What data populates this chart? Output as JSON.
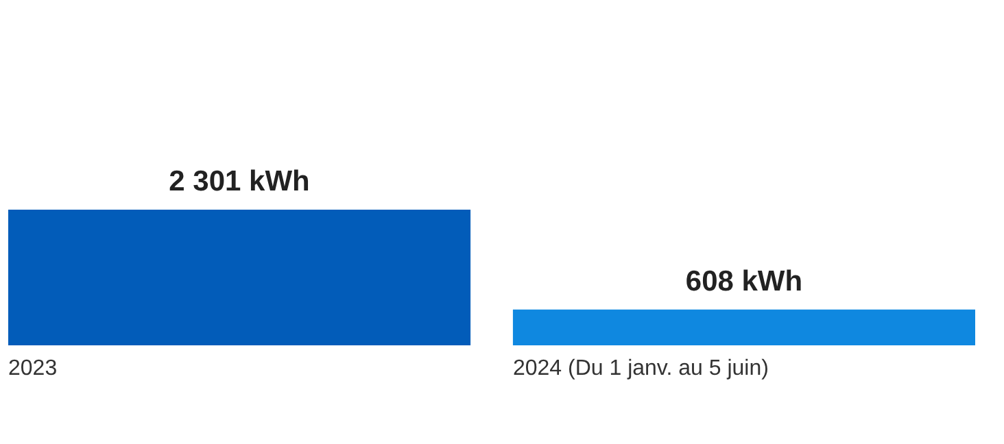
{
  "chart_data": {
    "type": "bar",
    "categories": [
      "2023",
      "2024 (Du 1 janv. au 5 juin)"
    ],
    "values": [
      2301,
      608
    ],
    "colors": [
      "#025cb9",
      "#0f88e0"
    ],
    "value_labels": [
      "2 301 kWh",
      "608 kWh"
    ]
  }
}
